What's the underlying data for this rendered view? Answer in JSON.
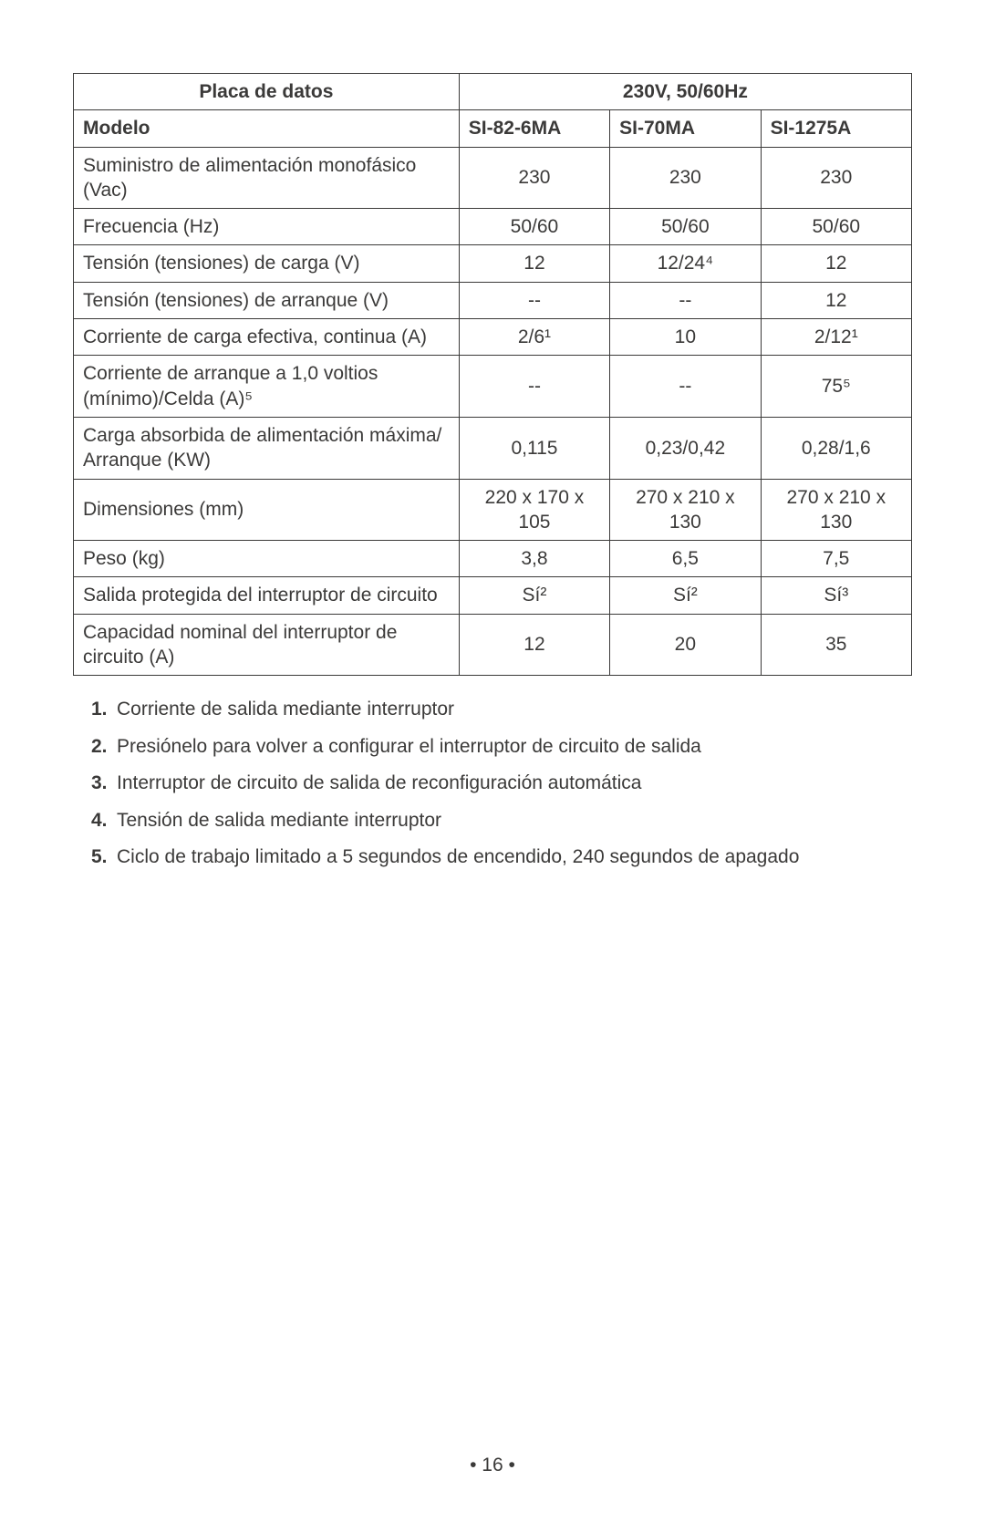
{
  "table": {
    "header_left": "Placa de datos",
    "header_right": "230V, 50/60Hz",
    "model_label": "Modelo",
    "models": [
      "SI-82-6MA",
      "SI-70MA",
      "SI-1275A"
    ],
    "rows": [
      {
        "label": "Suministro de alimentación monofásico (Vac)",
        "vals": [
          "230",
          "230",
          "230"
        ]
      },
      {
        "label": "Frecuencia (Hz)",
        "vals": [
          "50/60",
          "50/60",
          "50/60"
        ]
      },
      {
        "label": "Tensión (tensiones) de carga (V)",
        "vals": [
          "12",
          "12/24⁴",
          "12"
        ]
      },
      {
        "label": "Tensión (tensiones) de arranque (V)",
        "vals": [
          "--",
          "--",
          "12"
        ]
      },
      {
        "label": "Corriente de carga efectiva, continua (A)",
        "vals": [
          "2/6¹",
          "10",
          "2/12¹"
        ]
      },
      {
        "label": "Corriente de arranque a 1,0 voltios (mínimo)/Celda (A)⁵",
        "vals": [
          "--",
          "--",
          "75⁵"
        ]
      },
      {
        "label": "Carga absorbida de alimentación máxima/ Arranque (KW)",
        "vals": [
          "0,115",
          "0,23/0,42",
          "0,28/1,6"
        ]
      },
      {
        "label": "Dimensiones (mm)",
        "vals": [
          "220 x 170 x 105",
          "270 x 210 x 130",
          "270 x 210 x 130"
        ]
      },
      {
        "label": "Peso (kg)",
        "vals": [
          "3,8",
          "6,5",
          "7,5"
        ]
      },
      {
        "label": "Salida protegida del interruptor de circuito",
        "vals": [
          "Sí²",
          "Sí²",
          "Sí³"
        ]
      },
      {
        "label": "Capacidad nominal del interruptor de circuito (A)",
        "vals": [
          "12",
          "20",
          "35"
        ]
      }
    ],
    "border_color": "#3b3a39",
    "text_color": "#3b3a39",
    "font_size_pt": 16,
    "col_widths_pct": [
      46,
      18,
      18,
      18
    ]
  },
  "notes": [
    {
      "num": "1.",
      "text": "Corriente de salida mediante interruptor"
    },
    {
      "num": "2.",
      "text": "Presiónelo para volver a configurar el interruptor de circuito de salida"
    },
    {
      "num": "3.",
      "text": "Interruptor de circuito de salida de reconfiguración automática"
    },
    {
      "num": "4.",
      "text": "Tensión de salida mediante interruptor"
    },
    {
      "num": "5.",
      "text": "Ciclo de trabajo limitado a 5 segundos de encendido, 240 segundos de apagado"
    }
  ],
  "page_number": "• 16 •"
}
